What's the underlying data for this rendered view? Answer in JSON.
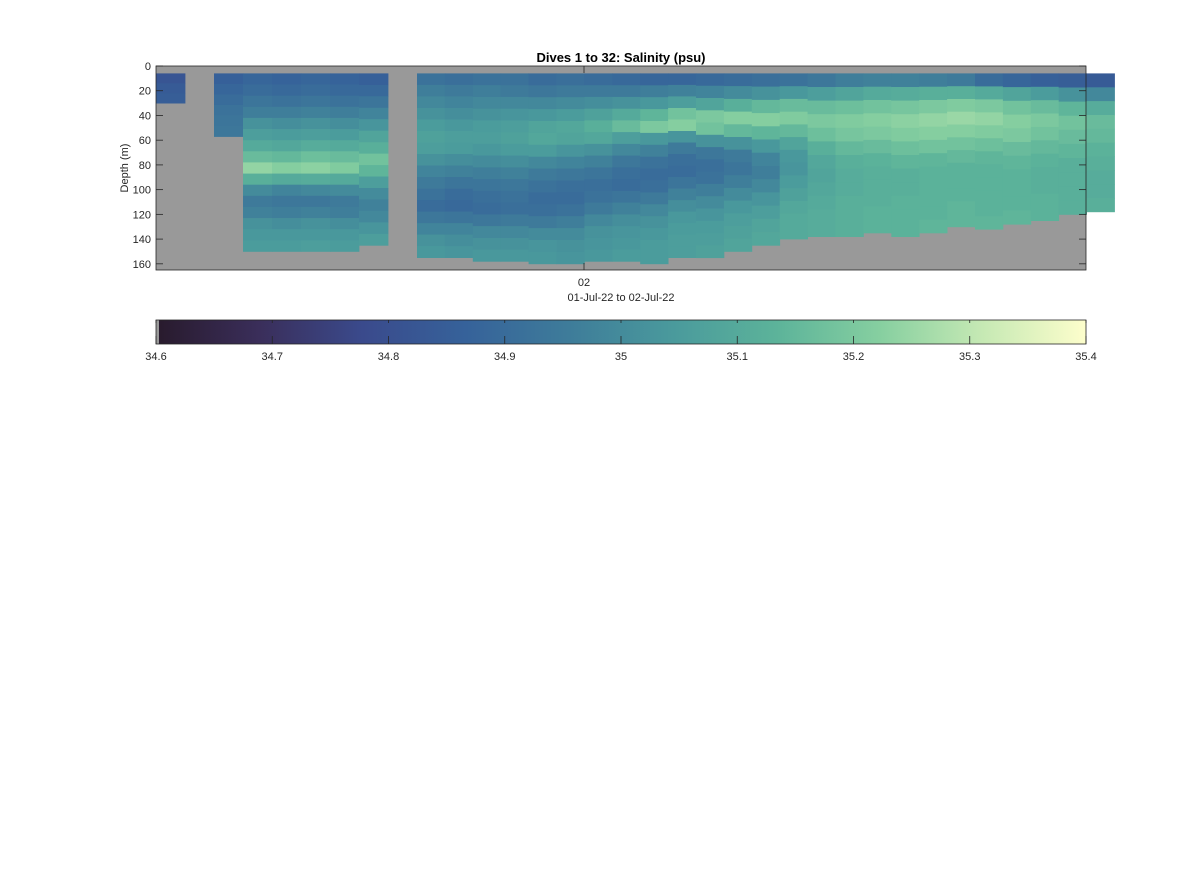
{
  "chart_data": {
    "type": "heatmap",
    "title": "Dives 1 to 32: Salinity (psu)",
    "ylabel": "Depth (m)",
    "xlabel": "01-Jul-22 to 02-Jul-22",
    "x_tick_labels": [
      "02"
    ],
    "y_ticks": [
      0,
      20,
      40,
      60,
      80,
      100,
      120,
      140,
      160
    ],
    "ylim": [
      0,
      165
    ],
    "y_reversed": true,
    "background_color": "#999999",
    "colorbar": {
      "orientation": "horizontal",
      "position": "below",
      "range": [
        34.6,
        35.4
      ],
      "ticks": [
        "34.6",
        "34.7",
        "34.8",
        "34.9",
        "35",
        "35.1",
        "35.2",
        "35.3",
        "35.4"
      ],
      "colormap": [
        "#281a2c",
        "#3a2e5a",
        "#3a4a8c",
        "#36629a",
        "#3e7c9a",
        "#4a9a9c",
        "#5cb39a",
        "#86cfa0",
        "#c6e9b4",
        "#fdfecc"
      ]
    },
    "profiles": [
      {
        "dive": 1,
        "max_depth": 30,
        "salinity": [
          34.82,
          34.84,
          34.85
        ]
      },
      {
        "dive": 2,
        "max_depth": 57,
        "salinity": [
          34.86,
          34.88,
          34.9,
          34.92,
          34.93,
          34.94
        ]
      },
      {
        "dive": 3,
        "max_depth": 150,
        "salinity": [
          34.88,
          34.9,
          34.93,
          34.96,
          35.02,
          35.06,
          35.1,
          35.16,
          35.24,
          35.12,
          35.0,
          34.95,
          34.97,
          35.02,
          35.04,
          35.05
        ]
      },
      {
        "dive": 4,
        "max_depth": 150,
        "salinity": [
          34.87,
          34.89,
          34.92,
          34.96,
          35.01,
          35.05,
          35.09,
          35.15,
          35.22,
          35.1,
          34.98,
          34.94,
          34.96,
          35.01,
          35.04,
          35.05
        ]
      },
      {
        "dive": 5,
        "max_depth": 150,
        "salinity": [
          34.88,
          34.9,
          34.93,
          34.97,
          35.02,
          35.06,
          35.11,
          35.17,
          35.23,
          35.11,
          34.99,
          34.94,
          34.97,
          35.02,
          35.04,
          35.06
        ]
      },
      {
        "dive": 6,
        "max_depth": 150,
        "salinity": [
          34.87,
          34.89,
          34.92,
          34.96,
          35.01,
          35.05,
          35.1,
          35.16,
          35.21,
          35.1,
          35.0,
          34.95,
          34.96,
          35.01,
          35.04,
          35.05
        ]
      },
      {
        "dive": 7,
        "max_depth": 145,
        "salinity": [
          34.86,
          34.89,
          34.93,
          34.98,
          35.03,
          35.08,
          35.12,
          35.18,
          35.14,
          35.06,
          35.0,
          34.97,
          34.99,
          35.03,
          35.06
        ]
      },
      {
        "dive": 8,
        "max_depth": 155,
        "salinity": [
          34.92,
          34.96,
          34.99,
          35.02,
          35.05,
          35.07,
          35.06,
          35.02,
          34.98,
          34.95,
          34.92,
          34.9,
          34.94,
          34.98,
          35.02,
          35.04
        ]
      },
      {
        "dive": 9,
        "max_depth": 155,
        "salinity": [
          34.91,
          34.95,
          34.98,
          35.01,
          35.04,
          35.06,
          35.05,
          35.01,
          34.97,
          34.93,
          34.9,
          34.89,
          34.93,
          34.98,
          35.01,
          35.03
        ]
      },
      {
        "dive": 10,
        "max_depth": 158,
        "salinity": [
          34.92,
          34.96,
          34.99,
          35.02,
          35.05,
          35.06,
          35.04,
          35.0,
          34.96,
          34.93,
          34.91,
          34.9,
          34.94,
          34.99,
          35.02,
          35.04
        ]
      },
      {
        "dive": 11,
        "max_depth": 158,
        "salinity": [
          34.92,
          34.95,
          34.99,
          35.03,
          35.06,
          35.07,
          35.05,
          35.01,
          34.97,
          34.94,
          34.92,
          34.91,
          34.95,
          34.99,
          35.02,
          35.04
        ]
      },
      {
        "dive": 12,
        "max_depth": 160,
        "salinity": [
          34.9,
          34.94,
          34.99,
          35.04,
          35.08,
          35.09,
          35.05,
          34.99,
          34.95,
          34.92,
          34.9,
          34.91,
          34.95,
          35.0,
          35.03,
          35.04
        ]
      },
      {
        "dive": 13,
        "max_depth": 160,
        "salinity": [
          34.91,
          34.95,
          35.0,
          35.05,
          35.09,
          35.08,
          35.03,
          34.98,
          34.94,
          34.91,
          34.9,
          34.92,
          34.96,
          35.0,
          35.02,
          35.03
        ]
      },
      {
        "dive": 14,
        "max_depth": 158,
        "salinity": [
          34.9,
          34.95,
          35.01,
          35.07,
          35.12,
          35.09,
          35.02,
          34.97,
          34.93,
          34.91,
          34.92,
          34.95,
          34.99,
          35.02,
          35.03,
          35.04
        ]
      },
      {
        "dive": 15,
        "max_depth": 158,
        "salinity": [
          34.89,
          34.95,
          35.02,
          35.1,
          35.16,
          35.06,
          34.99,
          34.94,
          34.91,
          34.9,
          34.93,
          34.97,
          35.01,
          35.03,
          35.04,
          35.05
        ]
      },
      {
        "dive": 16,
        "max_depth": 160,
        "salinity": [
          34.88,
          34.96,
          35.04,
          35.14,
          35.2,
          35.04,
          34.97,
          34.92,
          34.9,
          34.91,
          34.95,
          34.99,
          35.02,
          35.04,
          35.05,
          35.05
        ]
      },
      {
        "dive": 17,
        "max_depth": 155,
        "salinity": [
          34.88,
          34.97,
          35.06,
          35.18,
          35.22,
          35.03,
          34.95,
          34.91,
          34.9,
          34.93,
          34.97,
          35.01,
          35.04,
          35.05,
          35.06,
          35.06
        ]
      },
      {
        "dive": 18,
        "max_depth": 155,
        "salinity": [
          34.89,
          34.98,
          35.08,
          35.2,
          35.18,
          35.02,
          34.94,
          34.91,
          34.92,
          34.96,
          35.0,
          35.03,
          35.05,
          35.06,
          35.07
        ]
      },
      {
        "dive": 19,
        "max_depth": 150,
        "salinity": [
          34.9,
          35.0,
          35.12,
          35.22,
          35.15,
          35.02,
          34.95,
          34.93,
          34.96,
          35.0,
          35.04,
          35.06,
          35.07,
          35.08
        ]
      },
      {
        "dive": 20,
        "max_depth": 145,
        "salinity": [
          34.91,
          35.02,
          35.15,
          35.22,
          35.14,
          35.04,
          34.98,
          34.96,
          34.99,
          35.03,
          35.06,
          35.08,
          35.09
        ]
      },
      {
        "dive": 21,
        "max_depth": 140,
        "salinity": [
          34.92,
          35.04,
          35.16,
          35.21,
          35.15,
          35.08,
          35.04,
          35.03,
          35.05,
          35.07,
          35.09,
          35.1,
          35.1
        ]
      },
      {
        "dive": 22,
        "max_depth": 138,
        "salinity": [
          34.94,
          35.06,
          35.16,
          35.2,
          35.17,
          35.12,
          35.09,
          35.08,
          35.09,
          35.1,
          35.11,
          35.11
        ]
      },
      {
        "dive": 23,
        "max_depth": 138,
        "salinity": [
          34.96,
          35.08,
          35.17,
          35.21,
          35.19,
          35.15,
          35.12,
          35.11,
          35.11,
          35.12,
          35.12,
          35.12
        ]
      },
      {
        "dive": 24,
        "max_depth": 135,
        "salinity": [
          34.97,
          35.1,
          35.18,
          35.22,
          35.2,
          35.16,
          35.13,
          35.12,
          35.12,
          35.12,
          35.13,
          35.13
        ]
      },
      {
        "dive": 25,
        "max_depth": 138,
        "salinity": [
          34.97,
          35.11,
          35.19,
          35.23,
          35.21,
          35.17,
          35.14,
          35.12,
          35.12,
          35.13,
          35.13,
          35.13
        ]
      },
      {
        "dive": 26,
        "max_depth": 135,
        "salinity": [
          34.96,
          35.12,
          35.2,
          35.24,
          35.22,
          35.18,
          35.14,
          35.13,
          35.13,
          35.13,
          35.13,
          35.14
        ]
      },
      {
        "dive": 27,
        "max_depth": 130,
        "salinity": [
          34.95,
          35.12,
          35.21,
          35.25,
          35.22,
          35.18,
          35.15,
          35.13,
          35.13,
          35.13,
          35.14,
          35.14
        ]
      },
      {
        "dive": 28,
        "max_depth": 132,
        "salinity": [
          34.9,
          35.1,
          35.2,
          35.24,
          35.21,
          35.17,
          35.14,
          35.13,
          35.13,
          35.13,
          35.13,
          35.14
        ]
      },
      {
        "dive": 29,
        "max_depth": 128,
        "salinity": [
          34.88,
          35.08,
          35.18,
          35.22,
          35.2,
          35.16,
          35.14,
          35.13,
          35.13,
          35.13,
          35.14
        ]
      },
      {
        "dive": 30,
        "max_depth": 125,
        "salinity": [
          34.86,
          35.05,
          35.16,
          35.2,
          35.18,
          35.15,
          35.13,
          35.12,
          35.12,
          35.13,
          35.13
        ]
      },
      {
        "dive": 31,
        "max_depth": 120,
        "salinity": [
          34.85,
          35.02,
          35.14,
          35.18,
          35.16,
          35.14,
          35.12,
          35.12,
          35.12,
          35.12
        ]
      },
      {
        "dive": 32,
        "max_depth": 118,
        "salinity": [
          34.84,
          34.99,
          35.11,
          35.16,
          35.15,
          35.13,
          35.12,
          35.11,
          35.11,
          35.12
        ]
      }
    ]
  }
}
